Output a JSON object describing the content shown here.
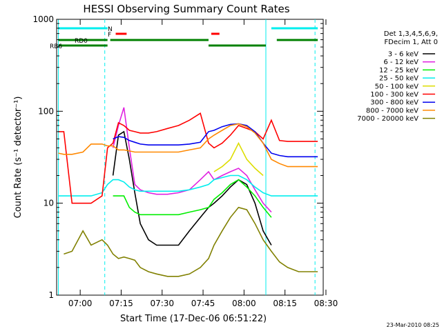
{
  "chart_data": {
    "type": "line",
    "title": "HESSI Observing Summary Count Rates",
    "xlabel": "Start Time (17-Dec-06 06:51:22)",
    "ylabel": "Count Rate (s⁻¹ detector⁻¹)",
    "x_scale": "time",
    "x_range": [
      "06:51:22",
      "08:29:00"
    ],
    "x_tick_labels": [
      "07:00",
      "07:15",
      "07:30",
      "07:45",
      "08:00",
      "08:15",
      "08:30"
    ],
    "y_scale": "log",
    "ylim": [
      1,
      1000
    ],
    "y_tick_labels": [
      "1",
      "10",
      "100",
      "1000"
    ],
    "grid": false,
    "legend_position": "right",
    "legend_header": [
      "Det 1,3,4,5,6,9,",
      "FDecim 1, Att 0"
    ],
    "x": [
      "06:52",
      "06:54",
      "06:57",
      "07:01",
      "07:04",
      "07:08",
      "07:10",
      "07:12",
      "07:14",
      "07:16",
      "07:18",
      "07:20",
      "07:22",
      "07:25",
      "07:28",
      "07:32",
      "07:36",
      "07:40",
      "07:44",
      "07:47",
      "07:49",
      "07:52",
      "07:55",
      "07:58",
      "08:01",
      "08:04",
      "08:07",
      "08:10",
      "08:13",
      "08:16",
      "08:20",
      "08:24",
      "08:27"
    ],
    "series": [
      {
        "name": "3 - 6 keV",
        "color": "#000000",
        "values": [
          null,
          null,
          null,
          null,
          null,
          null,
          null,
          20,
          55,
          60,
          30,
          13,
          6,
          4,
          3.5,
          3.5,
          3.5,
          5,
          7,
          9,
          10,
          12,
          15,
          18,
          16,
          10,
          5,
          3.5,
          null,
          null,
          null,
          null,
          null
        ]
      },
      {
        "name": "6 - 12 keV",
        "color": "#e020e0",
        "values": [
          null,
          null,
          null,
          null,
          null,
          null,
          null,
          40,
          70,
          110,
          40,
          16,
          14,
          13,
          12.5,
          12.5,
          13,
          14,
          18,
          22,
          18,
          20,
          22,
          24,
          20,
          14,
          10,
          8,
          null,
          null,
          null,
          null,
          null
        ]
      },
      {
        "name": "12 - 25 keV",
        "color": "#00ee00",
        "values": [
          null,
          null,
          null,
          null,
          null,
          null,
          null,
          12,
          12,
          12,
          9,
          8,
          7.5,
          7.5,
          7.5,
          7.5,
          7.5,
          8,
          8.5,
          9,
          11,
          13,
          16,
          18,
          15,
          12,
          9,
          7,
          null,
          null,
          null,
          null,
          null
        ]
      },
      {
        "name": "25 - 50 keV",
        "color": "#00eeee",
        "values": [
          12,
          12,
          12,
          12,
          12,
          13,
          16,
          18,
          18,
          17,
          15,
          14,
          13.5,
          13.5,
          13.5,
          13.5,
          13.5,
          14,
          15,
          16,
          18,
          19,
          20,
          20,
          18,
          15,
          13,
          12,
          12,
          12,
          12,
          12,
          12
        ]
      },
      {
        "name": "50 - 100 keV",
        "color": "#dddd00",
        "values": [
          null,
          null,
          null,
          null,
          null,
          null,
          null,
          null,
          null,
          null,
          null,
          null,
          null,
          null,
          null,
          null,
          null,
          null,
          null,
          null,
          22,
          25,
          30,
          45,
          30,
          24,
          20,
          null,
          null,
          null,
          null,
          null,
          null
        ]
      },
      {
        "name": "100 - 300 keV",
        "color": "#ff0000",
        "values": [
          60,
          60,
          10,
          10,
          10,
          12,
          40,
          45,
          75,
          70,
          62,
          60,
          58,
          58,
          60,
          65,
          70,
          80,
          95,
          45,
          40,
          45,
          55,
          70,
          65,
          60,
          50,
          80,
          48,
          47,
          47,
          47,
          47
        ]
      },
      {
        "name": "300 - 800 keV",
        "color": "#0000ee",
        "values": [
          null,
          null,
          null,
          null,
          null,
          null,
          null,
          50,
          53,
          52,
          48,
          46,
          44,
          43,
          43,
          43,
          43,
          44,
          46,
          60,
          62,
          68,
          72,
          73,
          70,
          60,
          45,
          35,
          33,
          32,
          32,
          32,
          32
        ]
      },
      {
        "name": "800 - 7000 keV",
        "color": "#ff8800",
        "values": [
          35,
          34,
          34,
          36,
          44,
          44,
          42,
          42,
          38,
          38,
          37,
          36,
          36,
          36,
          36,
          36,
          36,
          38,
          40,
          50,
          55,
          62,
          70,
          73,
          68,
          58,
          45,
          30,
          27,
          25,
          25,
          25,
          25
        ]
      },
      {
        "name": "7000 - 20000 keV",
        "color": "#808000",
        "values": [
          null,
          2.8,
          3,
          5,
          3.5,
          4,
          3.5,
          2.8,
          2.5,
          2.6,
          2.5,
          2.4,
          2,
          1.8,
          1.7,
          1.6,
          1.6,
          1.7,
          2,
          2.5,
          3.5,
          5,
          7,
          9,
          8.5,
          6,
          4,
          3,
          2.3,
          2,
          1.8,
          1.8,
          1.8
        ]
      }
    ],
    "state_bars": [
      {
        "label": "",
        "color": "#00eeee",
        "segments": [
          [
            "06:52",
            "07:10"
          ],
          [
            "08:10",
            "08:27"
          ]
        ]
      },
      {
        "label": "N",
        "color": "#00eeee",
        "segments": []
      },
      {
        "label": "F",
        "color": "#ff0000",
        "segments": [
          [
            "07:13",
            "07:17"
          ],
          [
            "07:48",
            "07:51"
          ]
        ]
      },
      {
        "label": "RD0",
        "color": "#008000",
        "segments": [
          [
            "06:52",
            "07:10"
          ],
          [
            "07:11",
            "07:47"
          ],
          [
            "08:12",
            "08:27"
          ]
        ]
      },
      {
        "label": "RB6",
        "color": "#008000",
        "segments": [
          [
            "06:52",
            "07:10"
          ],
          [
            "07:47",
            "08:08"
          ]
        ]
      }
    ],
    "vlines_dashed": [
      "07:09",
      "08:26"
    ],
    "vlines_solid": [
      "06:52",
      "08:08"
    ]
  },
  "footer_stamp": "23-Mar-2010 08:25"
}
